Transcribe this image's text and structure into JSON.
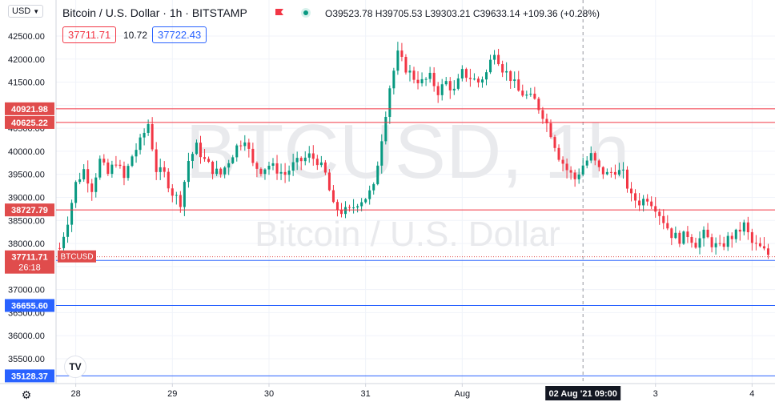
{
  "header": {
    "symbol_menu": "USD",
    "title": "Bitcoin / U.S. Dollar · 1h · BITSTAMP",
    "ohlc": "O39523.78 H39705.53 L39303.21 C39633.14 +109.36 (+0.28%)",
    "bid": "37711.71",
    "spread": "10.72",
    "ask": "37722.43"
  },
  "watermark": {
    "symbol": "BTCUSD, 1h",
    "name": "Bitcoin / U.S. Dollar"
  },
  "logo": "TV",
  "colors": {
    "up": "#089981",
    "down": "#f23645",
    "resistance": "#f23645",
    "support": "#2962ff",
    "price_label": "#e04c4c",
    "support_label": "#2962ff",
    "axis_text": "#131722",
    "grid": "#f0f3fa"
  },
  "chart_data": {
    "type": "candlestick",
    "timeframe": "1h",
    "xlabel": "",
    "ylabel": "",
    "ylim": [
      35000,
      42600
    ],
    "y_ticks": [
      35500,
      36000,
      36500,
      37000,
      37500,
      38000,
      38500,
      39000,
      39500,
      40000,
      40500,
      41000,
      41500,
      42000,
      42500
    ],
    "y_tick_labels": [
      "35500.00",
      "36000.00",
      "36500.00",
      "37000.00",
      "37500.00",
      "38000.00",
      "38500.00",
      "39000.00",
      "39500.00",
      "40000.00",
      "40500.00",
      "41000.00",
      "41500.00",
      "42000.00",
      "42500.00"
    ],
    "x_labels": [
      "28",
      "29",
      "30",
      "31",
      "Aug",
      "3",
      "4"
    ],
    "x_label_index": [
      4,
      28,
      52,
      76,
      100,
      148,
      172
    ],
    "crosshair_label": "02 Aug '21  09:00",
    "crosshair_index": 130,
    "current_price": 37711.71,
    "current_price_label": "37711.71",
    "current_price_symbol": "BTCUSD",
    "countdown": "26:18",
    "horizontal_lines": [
      {
        "price": 40921.98,
        "label": "40921.98",
        "kind": "resistance"
      },
      {
        "price": 40625.22,
        "label": "40625.22",
        "kind": "resistance"
      },
      {
        "price": 38727.79,
        "label": "38727.79",
        "kind": "resistance"
      },
      {
        "price": 37632.67,
        "label": "37632.67",
        "kind": "support"
      },
      {
        "price": 36655.6,
        "label": "36655.60",
        "kind": "support"
      },
      {
        "price": 35128.37,
        "label": "35128.37",
        "kind": "support"
      }
    ],
    "close_path": [
      [
        0,
        37900
      ],
      [
        2,
        38500
      ],
      [
        4,
        39300
      ],
      [
        6,
        39600
      ],
      [
        8,
        39200
      ],
      [
        10,
        39800
      ],
      [
        12,
        39500
      ],
      [
        14,
        39800
      ],
      [
        16,
        39400
      ],
      [
        18,
        39900
      ],
      [
        20,
        40200
      ],
      [
        22,
        40600
      ],
      [
        24,
        39600
      ],
      [
        26,
        39500
      ],
      [
        28,
        39100
      ],
      [
        30,
        38900
      ],
      [
        32,
        39800
      ],
      [
        34,
        40100
      ],
      [
        36,
        39800
      ],
      [
        38,
        39600
      ],
      [
        40,
        39500
      ],
      [
        42,
        39800
      ],
      [
        44,
        40100
      ],
      [
        46,
        40300
      ],
      [
        48,
        39700
      ],
      [
        50,
        39600
      ],
      [
        52,
        39700
      ],
      [
        54,
        39600
      ],
      [
        56,
        39500
      ],
      [
        58,
        39700
      ],
      [
        60,
        39800
      ],
      [
        62,
        39900
      ],
      [
        64,
        39800
      ],
      [
        66,
        39500
      ],
      [
        68,
        38800
      ],
      [
        70,
        38700
      ],
      [
        72,
        38700
      ],
      [
        74,
        38900
      ],
      [
        76,
        39000
      ],
      [
        78,
        39200
      ],
      [
        80,
        40300
      ],
      [
        82,
        41400
      ],
      [
        84,
        42100
      ],
      [
        86,
        41800
      ],
      [
        88,
        41600
      ],
      [
        90,
        41500
      ],
      [
        92,
        41600
      ],
      [
        94,
        41300
      ],
      [
        96,
        41500
      ],
      [
        98,
        41300
      ],
      [
        100,
        41700
      ],
      [
        102,
        41600
      ],
      [
        104,
        41500
      ],
      [
        106,
        41700
      ],
      [
        108,
        42200
      ],
      [
        110,
        41800
      ],
      [
        112,
        41600
      ],
      [
        114,
        41300
      ],
      [
        116,
        41200
      ],
      [
        118,
        41100
      ],
      [
        120,
        40800
      ],
      [
        122,
        40400
      ],
      [
        124,
        39900
      ],
      [
        126,
        39600
      ],
      [
        128,
        39400
      ],
      [
        130,
        39700
      ],
      [
        132,
        39900
      ],
      [
        134,
        39600
      ],
      [
        136,
        39500
      ],
      [
        138,
        39600
      ],
      [
        140,
        39500
      ],
      [
        142,
        39000
      ],
      [
        144,
        38900
      ],
      [
        146,
        39000
      ],
      [
        148,
        38800
      ],
      [
        150,
        38500
      ],
      [
        152,
        38200
      ],
      [
        154,
        38100
      ],
      [
        156,
        38200
      ],
      [
        158,
        38000
      ],
      [
        160,
        38200
      ],
      [
        162,
        38000
      ],
      [
        164,
        37900
      ],
      [
        166,
        38100
      ],
      [
        168,
        38200
      ],
      [
        170,
        38400
      ],
      [
        172,
        38000
      ],
      [
        174,
        37900
      ],
      [
        176,
        37760
      ]
    ]
  }
}
